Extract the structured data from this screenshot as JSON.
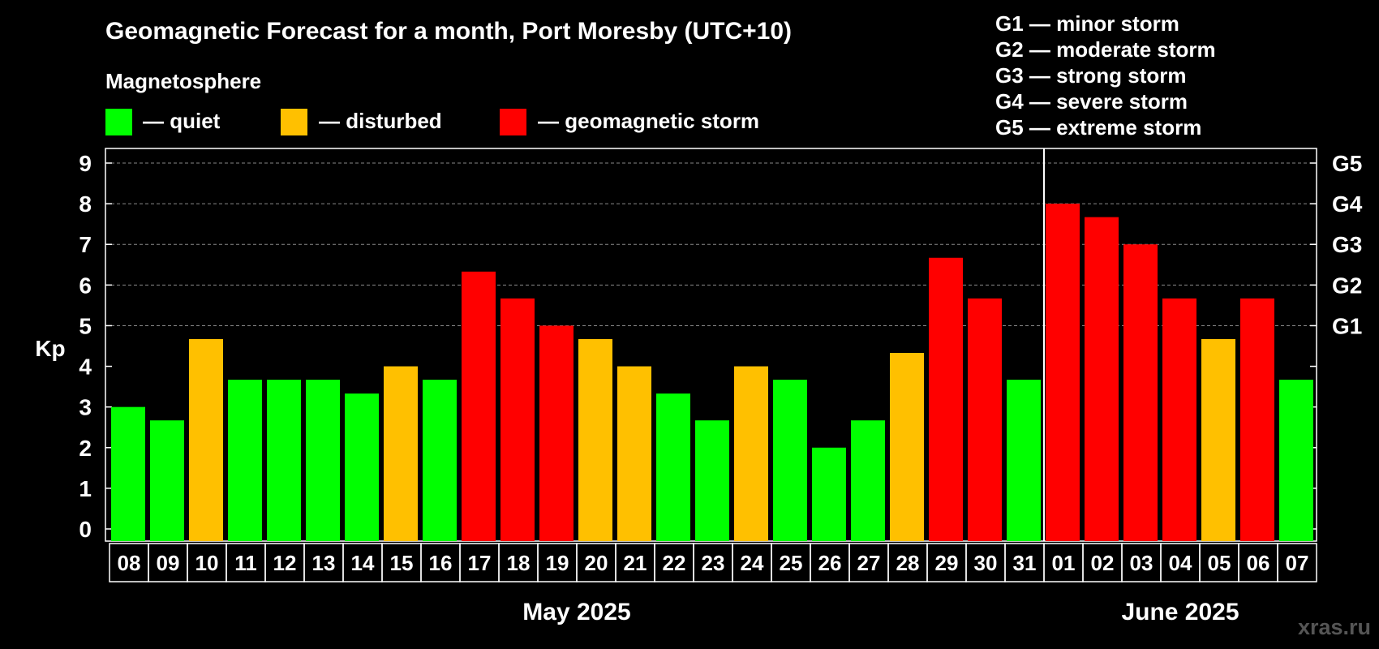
{
  "title": "Geomagnetic Forecast for a month, Port Moresby (UTC+10)",
  "legend": {
    "title": "Magnetosphere",
    "items": [
      {
        "label": "— quiet",
        "color": "#00ff00"
      },
      {
        "label": "— disturbed",
        "color": "#ffc000"
      },
      {
        "label": "— geomagnetic storm",
        "color": "#ff0000"
      }
    ]
  },
  "storm_scale": [
    "G1 — minor storm",
    "G2 — moderate storm",
    "G3 — strong storm",
    "G4 — severe storm",
    "G5 — extreme storm"
  ],
  "watermark": "xras.ru",
  "chart_data": {
    "type": "bar",
    "title": "Geomagnetic Forecast for a month, Port Moresby (UTC+10)",
    "ylabel": "Kp",
    "ylim": [
      0,
      9
    ],
    "yticks": [
      "0",
      "1",
      "2",
      "3",
      "4",
      "5",
      "6",
      "7",
      "8",
      "9"
    ],
    "right_axis_labels": [
      {
        "kp": 5,
        "label": "G1"
      },
      {
        "kp": 6,
        "label": "G2"
      },
      {
        "kp": 7,
        "label": "G3"
      },
      {
        "kp": 8,
        "label": "G4"
      },
      {
        "kp": 9,
        "label": "G5"
      }
    ],
    "grid": "dashed horizontal at Kp 5-9",
    "months": [
      {
        "label": "May 2025",
        "days": 24
      },
      {
        "label": "June 2025",
        "days": 7
      }
    ],
    "categories": [
      "08",
      "09",
      "10",
      "11",
      "12",
      "13",
      "14",
      "15",
      "16",
      "17",
      "18",
      "19",
      "20",
      "21",
      "22",
      "23",
      "24",
      "25",
      "26",
      "27",
      "28",
      "29",
      "30",
      "31",
      "01",
      "02",
      "03",
      "04",
      "05",
      "06",
      "07"
    ],
    "values": [
      3.0,
      2.67,
      4.67,
      3.67,
      3.67,
      3.67,
      3.33,
      4.0,
      3.67,
      6.33,
      5.67,
      5.0,
      4.67,
      4.0,
      3.33,
      2.67,
      4.0,
      3.67,
      2.0,
      2.67,
      4.33,
      6.67,
      5.67,
      3.67,
      8.0,
      7.67,
      7.0,
      5.67,
      4.67,
      5.67,
      3.67
    ],
    "levels": [
      "quiet",
      "quiet",
      "disturbed",
      "quiet",
      "quiet",
      "quiet",
      "quiet",
      "disturbed",
      "quiet",
      "storm",
      "storm",
      "storm",
      "disturbed",
      "disturbed",
      "quiet",
      "quiet",
      "disturbed",
      "quiet",
      "quiet",
      "quiet",
      "disturbed",
      "storm",
      "storm",
      "quiet",
      "storm",
      "storm",
      "storm",
      "storm",
      "disturbed",
      "storm",
      "quiet"
    ],
    "level_colors": {
      "quiet": "#00ff00",
      "disturbed": "#ffc000",
      "storm": "#ff0000"
    }
  }
}
